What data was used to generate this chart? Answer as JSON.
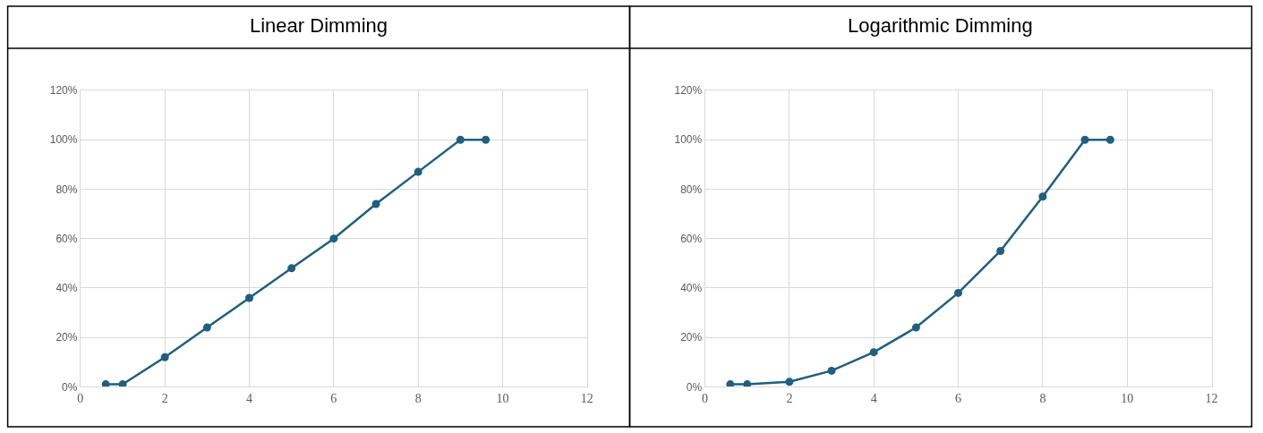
{
  "chart_data": [
    {
      "type": "line",
      "title": "Linear Dimming",
      "x": [
        0.6,
        1,
        2,
        3,
        4,
        5,
        6,
        7,
        8,
        9,
        9.6
      ],
      "series": [
        {
          "color": "#1f5f7f",
          "values": [
            1,
            1,
            12,
            24,
            36,
            48,
            60,
            74,
            87,
            100,
            100
          ]
        }
      ],
      "xlim": [
        0,
        12
      ],
      "xticks": [
        0,
        2,
        4,
        6,
        8,
        10,
        12
      ],
      "ylim": [
        0,
        120
      ],
      "yticks": [
        {
          "value": 0,
          "label": "0%"
        },
        {
          "value": 20,
          "label": "20%"
        },
        {
          "value": 40,
          "label": "40%"
        },
        {
          "value": 60,
          "label": "60%"
        },
        {
          "value": 80,
          "label": "80%"
        },
        {
          "value": 100,
          "label": "100%"
        },
        {
          "value": 120,
          "label": "120%"
        }
      ],
      "grid": true,
      "marker": "circle",
      "line_style": "solid"
    },
    {
      "type": "line",
      "title": "Logarithmic Dimming",
      "x": [
        0.6,
        1,
        2,
        3,
        4,
        5,
        6,
        7,
        8,
        9,
        9.6
      ],
      "series": [
        {
          "color": "#1f5f7f",
          "values": [
            1,
            1,
            2,
            6.5,
            14,
            24,
            38,
            55,
            77,
            100,
            100
          ]
        }
      ],
      "xlim": [
        0,
        12
      ],
      "xticks": [
        0,
        2,
        4,
        6,
        8,
        10,
        12
      ],
      "ylim": [
        0,
        120
      ],
      "yticks": [
        {
          "value": 0,
          "label": "0%"
        },
        {
          "value": 20,
          "label": "20%"
        },
        {
          "value": 40,
          "label": "40%"
        },
        {
          "value": 60,
          "label": "60%"
        },
        {
          "value": 80,
          "label": "80%"
        },
        {
          "value": 100,
          "label": "100%"
        },
        {
          "value": 120,
          "label": "120%"
        }
      ],
      "grid": true,
      "marker": "circle",
      "line_style": "solid"
    }
  ]
}
